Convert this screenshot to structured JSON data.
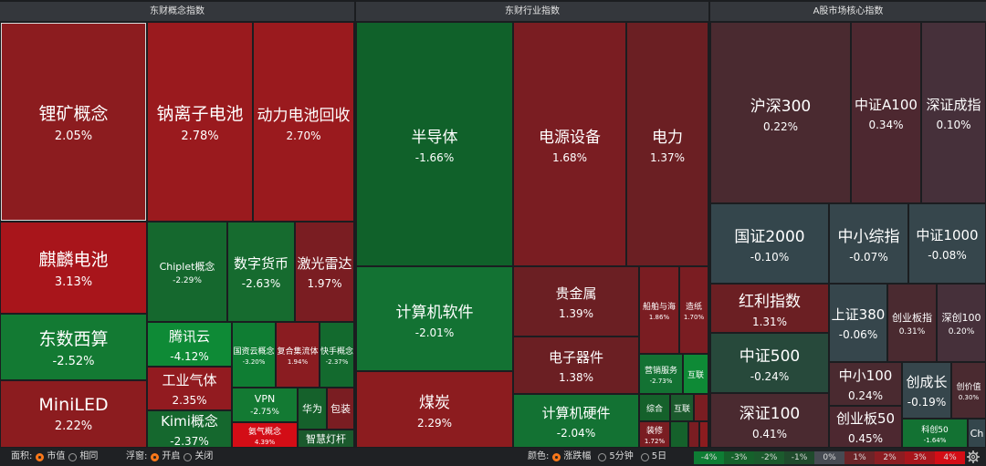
{
  "headers": {
    "concept": "东财概念指数",
    "industry": "东财行业指数",
    "core": "A股市场核心指数"
  },
  "tiles": {
    "lkgn": {
      "name": "锂矿概念",
      "pct": "2.05%"
    },
    "nlzdc": {
      "name": "钠离子电池",
      "pct": "2.78%"
    },
    "dldchs": {
      "name": "动力电池回收",
      "pct": "2.70%"
    },
    "qldc": {
      "name": "麒麟电池",
      "pct": "3.13%"
    },
    "chiplet": {
      "name": "Chiplet概念",
      "pct": "-2.29%"
    },
    "szhb": {
      "name": "数字货币",
      "pct": "-2.63%"
    },
    "jgld": {
      "name": "激光雷达",
      "pct": "1.97%"
    },
    "dsxs": {
      "name": "东数西算",
      "pct": "-2.52%"
    },
    "txy": {
      "name": "腾讯云",
      "pct": "-4.12%"
    },
    "gczy": {
      "name": "国资云概念",
      "pct": "-3.20%"
    },
    "fhjlt": {
      "name": "复合集流体",
      "pct": "1.94%"
    },
    "kdgn": {
      "name": "快手概念",
      "pct": "-2.37%"
    },
    "gyqt": {
      "name": "工业气体",
      "pct": "2.35%"
    },
    "vpn": {
      "name": "VPN",
      "pct": "-2.75%"
    },
    "huawei": {
      "name": "华为"
    },
    "baozhuang": {
      "name": "包装"
    },
    "miniled": {
      "name": "MiniLED",
      "pct": "2.22%"
    },
    "kimi": {
      "name": "Kimi概念",
      "pct": "-2.37%"
    },
    "fqgn": {
      "name": "氨气概念",
      "pct": "4.39%"
    },
    "zhdg": {
      "name": "智慧灯杆"
    },
    "bdt": {
      "name": "半导体",
      "pct": "-1.66%"
    },
    "dysb": {
      "name": "电源设备",
      "pct": "1.68%"
    },
    "dl": {
      "name": "电力",
      "pct": "1.37%"
    },
    "jsjrj": {
      "name": "计算机软件",
      "pct": "-2.01%"
    },
    "gjs": {
      "name": "贵金属",
      "pct": "1.39%"
    },
    "cbyh": {
      "name": "船舶与海",
      "pct": "1.86%"
    },
    "zz": {
      "name": "造纸",
      "pct": "1.70%"
    },
    "dzqj": {
      "name": "电子器件",
      "pct": "1.38%"
    },
    "yxfw": {
      "name": "营销服务",
      "pct": "-2.73%"
    },
    "hl1": {
      "name": "互联"
    },
    "mt": {
      "name": "煤炭",
      "pct": "2.29%"
    },
    "jsjyj": {
      "name": "计算机硬件",
      "pct": "-2.04%"
    },
    "zh": {
      "name": "综合"
    },
    "hl2": {
      "name": "互联"
    },
    "zx": {
      "name": "装修",
      "pct": "1.72%"
    },
    "hs300": {
      "name": "沪深300",
      "pct": "0.22%"
    },
    "zza100": {
      "name": "中证A100",
      "pct": "0.34%"
    },
    "szcz": {
      "name": "深证成指",
      "pct": "0.10%"
    },
    "gz2000": {
      "name": "国证2000",
      "pct": "-0.10%"
    },
    "zxzz": {
      "name": "中小综指",
      "pct": "-0.07%"
    },
    "zz1000": {
      "name": "中证1000",
      "pct": "-0.08%"
    },
    "hlzs": {
      "name": "红利指数",
      "pct": "1.31%"
    },
    "sz380": {
      "name": "上证380",
      "pct": "-0.06%"
    },
    "cybz": {
      "name": "创业板指",
      "pct": "0.31%"
    },
    "sc100": {
      "name": "深创100",
      "pct": "0.20%"
    },
    "zz500": {
      "name": "中证500",
      "pct": "-0.24%"
    },
    "zx100": {
      "name": "中小100",
      "pct": "0.24%"
    },
    "ccz": {
      "name": "创成长",
      "pct": "-0.19%"
    },
    "cjz": {
      "name": "创价值",
      "pct": "0.30%"
    },
    "sz100": {
      "name": "深证100",
      "pct": "0.41%"
    },
    "cyb50": {
      "name": "创业板50",
      "pct": "0.45%"
    },
    "kc50": {
      "name": "科创50",
      "pct": "-1.64%"
    },
    "ch": {
      "name": "Ch"
    }
  },
  "toolbar": {
    "area_label": "面积:",
    "area_opts": [
      "市值",
      "相同"
    ],
    "float_label": "浮窗:",
    "float_opts": [
      "开启",
      "关闭"
    ],
    "color_label": "颜色:",
    "color_opts": [
      "涨跌幅",
      "5分钟",
      "5日"
    ],
    "legend": [
      "-4%",
      "-3%",
      "-2%",
      "-1%",
      "0%",
      "1%",
      "2%",
      "3%",
      "4%"
    ],
    "legend_colors": [
      "#0e7d34",
      "#15612b",
      "#1b5a2d",
      "#1f4a2c",
      "#474b53",
      "#6b2428",
      "#8b1d22",
      "#a8151b",
      "#d30d16"
    ],
    "active_color": "#ff7a1a"
  }
}
